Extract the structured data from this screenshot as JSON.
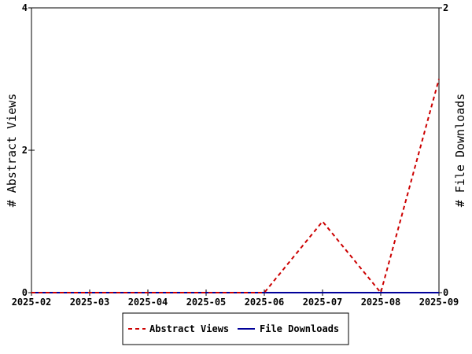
{
  "chart_data": {
    "type": "line",
    "x": [
      "2025-02",
      "2025-03",
      "2025-04",
      "2025-05",
      "2025-06",
      "2025-07",
      "2025-08",
      "2025-09"
    ],
    "series": [
      {
        "name": "Abstract Views",
        "axis": "left",
        "values": [
          0,
          0,
          0,
          0,
          0,
          1,
          0,
          3
        ],
        "color": "#cc0000",
        "style": "dashed"
      },
      {
        "name": "File Downloads",
        "axis": "right",
        "values": [
          0,
          0,
          0,
          0,
          0,
          0,
          0,
          0
        ],
        "color": "#000099",
        "style": "solid"
      }
    ],
    "ylabel": "# Abstract Views",
    "ylabel_right": "# File Downloads",
    "ylim": [
      0,
      4
    ],
    "ylim_right": [
      0,
      2
    ],
    "yticks": [
      "0",
      "2",
      "4"
    ],
    "yticks_right": [
      "0",
      "2"
    ],
    "grid": false,
    "legend_position": "bottom"
  }
}
